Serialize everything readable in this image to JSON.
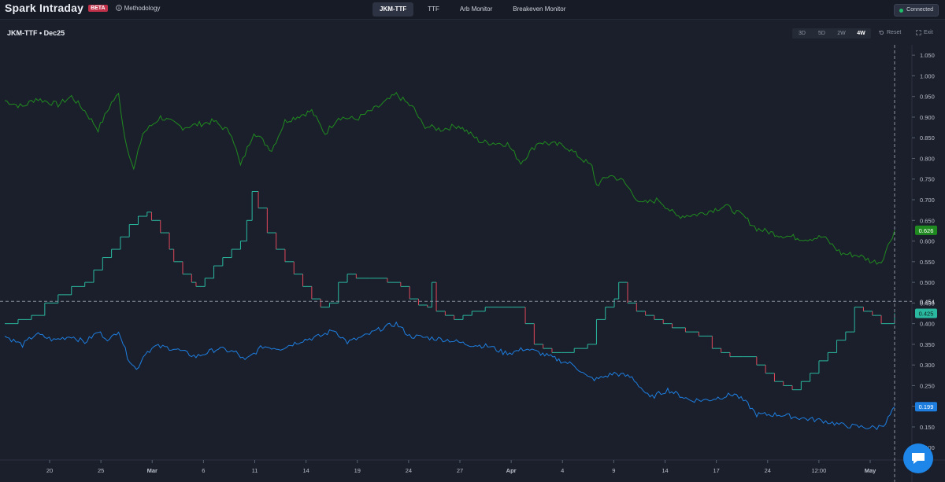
{
  "header": {
    "app_name": "Spark Intraday",
    "badge": "BETA",
    "methodology": "Methodology",
    "tabs": [
      "JKM-TTF",
      "TTF",
      "Arb Monitor",
      "Breakeven Monitor"
    ],
    "active_tab": "JKM-TTF",
    "status": "Connected"
  },
  "toolbar": {
    "title": "JKM-TTF  •  Dec25",
    "ranges": [
      "3D",
      "5D",
      "2W",
      "4W"
    ],
    "active_range": "4W",
    "reset": "Reset",
    "exit": "Exit"
  },
  "colors": {
    "background": "#1b1f2b",
    "green_series": "#1f8a1f",
    "blue_series": "#1d7ee0",
    "step_up": "#2ab8a0",
    "step_down": "#e0485a",
    "connected": "#1fbf6a"
  },
  "chart_data": {
    "type": "line",
    "x_ticks": [
      "20",
      "25",
      "Mar",
      "6",
      "11",
      "14",
      "19",
      "24",
      "27",
      "Apr",
      "4",
      "9",
      "14",
      "17",
      "24",
      "12:00",
      "May"
    ],
    "y_ticks": [
      "1.050",
      "1.000",
      "0.950",
      "0.900",
      "0.850",
      "0.800",
      "0.750",
      "0.700",
      "0.650",
      "0.600",
      "0.550",
      "0.500",
      "0.450",
      "0.400",
      "0.350",
      "0.300",
      "0.250",
      "0.200",
      "0.150",
      "0.100"
    ],
    "ylim": [
      0.07,
      1.075
    ],
    "crosshair_value": "0.454",
    "series": [
      {
        "key": "green",
        "last_label": "0.626",
        "points": [
          [
            0,
            0.94
          ],
          [
            0.02,
            0.925
          ],
          [
            0.035,
            0.945
          ],
          [
            0.06,
            0.93
          ],
          [
            0.075,
            0.95
          ],
          [
            0.09,
            0.915
          ],
          [
            0.105,
            0.87
          ],
          [
            0.12,
            0.935
          ],
          [
            0.128,
            0.955
          ],
          [
            0.135,
            0.85
          ],
          [
            0.145,
            0.772
          ],
          [
            0.155,
            0.86
          ],
          [
            0.175,
            0.9
          ],
          [
            0.2,
            0.875
          ],
          [
            0.235,
            0.89
          ],
          [
            0.255,
            0.86
          ],
          [
            0.265,
            0.782
          ],
          [
            0.28,
            0.865
          ],
          [
            0.3,
            0.82
          ],
          [
            0.315,
            0.89
          ],
          [
            0.345,
            0.915
          ],
          [
            0.36,
            0.86
          ],
          [
            0.375,
            0.9
          ],
          [
            0.395,
            0.895
          ],
          [
            0.42,
            0.925
          ],
          [
            0.44,
            0.955
          ],
          [
            0.46,
            0.92
          ],
          [
            0.47,
            0.88
          ],
          [
            0.49,
            0.87
          ],
          [
            0.51,
            0.88
          ],
          [
            0.535,
            0.84
          ],
          [
            0.565,
            0.835
          ],
          [
            0.58,
            0.79
          ],
          [
            0.6,
            0.84
          ],
          [
            0.63,
            0.83
          ],
          [
            0.66,
            0.78
          ],
          [
            0.665,
            0.735
          ],
          [
            0.68,
            0.76
          ],
          [
            0.695,
            0.745
          ],
          [
            0.715,
            0.69
          ],
          [
            0.735,
            0.7
          ],
          [
            0.755,
            0.66
          ],
          [
            0.78,
            0.665
          ],
          [
            0.81,
            0.685
          ],
          [
            0.83,
            0.66
          ],
          [
            0.845,
            0.63
          ],
          [
            0.87,
            0.615
          ],
          [
            0.9,
            0.605
          ],
          [
            0.92,
            0.61
          ],
          [
            0.94,
            0.57
          ],
          [
            0.96,
            0.565
          ],
          [
            0.975,
            0.55
          ],
          [
            0.985,
            0.55
          ],
          [
            1,
            0.626
          ]
        ]
      },
      {
        "key": "blue",
        "last_label": "0.199",
        "points": [
          [
            0,
            0.37
          ],
          [
            0.02,
            0.348
          ],
          [
            0.035,
            0.375
          ],
          [
            0.055,
            0.36
          ],
          [
            0.075,
            0.37
          ],
          [
            0.09,
            0.355
          ],
          [
            0.105,
            0.38
          ],
          [
            0.118,
            0.36
          ],
          [
            0.128,
            0.385
          ],
          [
            0.138,
            0.32
          ],
          [
            0.148,
            0.288
          ],
          [
            0.158,
            0.33
          ],
          [
            0.17,
            0.345
          ],
          [
            0.19,
            0.34
          ],
          [
            0.215,
            0.32
          ],
          [
            0.24,
            0.34
          ],
          [
            0.26,
            0.33
          ],
          [
            0.27,
            0.31
          ],
          [
            0.29,
            0.345
          ],
          [
            0.31,
            0.34
          ],
          [
            0.335,
            0.36
          ],
          [
            0.355,
            0.37
          ],
          [
            0.37,
            0.385
          ],
          [
            0.385,
            0.355
          ],
          [
            0.405,
            0.37
          ],
          [
            0.425,
            0.39
          ],
          [
            0.44,
            0.4
          ],
          [
            0.455,
            0.37
          ],
          [
            0.48,
            0.365
          ],
          [
            0.5,
            0.36
          ],
          [
            0.52,
            0.35
          ],
          [
            0.545,
            0.345
          ],
          [
            0.56,
            0.33
          ],
          [
            0.57,
            0.33
          ],
          [
            0.585,
            0.34
          ],
          [
            0.6,
            0.33
          ],
          [
            0.625,
            0.31
          ],
          [
            0.64,
            0.3
          ],
          [
            0.655,
            0.27
          ],
          [
            0.665,
            0.265
          ],
          [
            0.685,
            0.28
          ],
          [
            0.705,
            0.27
          ],
          [
            0.725,
            0.22
          ],
          [
            0.745,
            0.24
          ],
          [
            0.77,
            0.215
          ],
          [
            0.79,
            0.215
          ],
          [
            0.82,
            0.23
          ],
          [
            0.835,
            0.205
          ],
          [
            0.845,
            0.18
          ],
          [
            0.87,
            0.18
          ],
          [
            0.9,
            0.17
          ],
          [
            0.92,
            0.165
          ],
          [
            0.94,
            0.155
          ],
          [
            0.96,
            0.15
          ],
          [
            0.98,
            0.148
          ],
          [
            0.99,
            0.16
          ],
          [
            1,
            0.199
          ]
        ]
      },
      {
        "key": "step",
        "last_label": "0.425",
        "points": [
          [
            0,
            0.4
          ],
          [
            0.015,
            0.41
          ],
          [
            0.03,
            0.42
          ],
          [
            0.045,
            0.45
          ],
          [
            0.06,
            0.47
          ],
          [
            0.075,
            0.49
          ],
          [
            0.09,
            0.5
          ],
          [
            0.1,
            0.53
          ],
          [
            0.11,
            0.56
          ],
          [
            0.12,
            0.58
          ],
          [
            0.13,
            0.61
          ],
          [
            0.14,
            0.64
          ],
          [
            0.15,
            0.66
          ],
          [
            0.16,
            0.67
          ],
          [
            0.165,
            0.65
          ],
          [
            0.175,
            0.62
          ],
          [
            0.185,
            0.58
          ],
          [
            0.19,
            0.55
          ],
          [
            0.2,
            0.52
          ],
          [
            0.21,
            0.5
          ],
          [
            0.215,
            0.49
          ],
          [
            0.225,
            0.51
          ],
          [
            0.235,
            0.54
          ],
          [
            0.245,
            0.56
          ],
          [
            0.255,
            0.58
          ],
          [
            0.265,
            0.6
          ],
          [
            0.272,
            0.65
          ],
          [
            0.278,
            0.72
          ],
          [
            0.285,
            0.68
          ],
          [
            0.295,
            0.62
          ],
          [
            0.305,
            0.58
          ],
          [
            0.315,
            0.55
          ],
          [
            0.325,
            0.52
          ],
          [
            0.335,
            0.49
          ],
          [
            0.345,
            0.46
          ],
          [
            0.355,
            0.44
          ],
          [
            0.365,
            0.45
          ],
          [
            0.375,
            0.5
          ],
          [
            0.385,
            0.52
          ],
          [
            0.395,
            0.51
          ],
          [
            0.41,
            0.51
          ],
          [
            0.43,
            0.5
          ],
          [
            0.445,
            0.49
          ],
          [
            0.455,
            0.46
          ],
          [
            0.465,
            0.445
          ],
          [
            0.475,
            0.44
          ],
          [
            0.48,
            0.5
          ],
          [
            0.485,
            0.43
          ],
          [
            0.495,
            0.42
          ],
          [
            0.505,
            0.41
          ],
          [
            0.515,
            0.42
          ],
          [
            0.525,
            0.43
          ],
          [
            0.54,
            0.44
          ],
          [
            0.555,
            0.44
          ],
          [
            0.57,
            0.44
          ],
          [
            0.585,
            0.4
          ],
          [
            0.595,
            0.35
          ],
          [
            0.605,
            0.34
          ],
          [
            0.615,
            0.33
          ],
          [
            0.625,
            0.33
          ],
          [
            0.64,
            0.34
          ],
          [
            0.655,
            0.35
          ],
          [
            0.665,
            0.41
          ],
          [
            0.675,
            0.44
          ],
          [
            0.685,
            0.46
          ],
          [
            0.69,
            0.5
          ],
          [
            0.7,
            0.45
          ],
          [
            0.71,
            0.43
          ],
          [
            0.72,
            0.42
          ],
          [
            0.73,
            0.41
          ],
          [
            0.74,
            0.4
          ],
          [
            0.75,
            0.39
          ],
          [
            0.765,
            0.38
          ],
          [
            0.78,
            0.37
          ],
          [
            0.795,
            0.34
          ],
          [
            0.805,
            0.33
          ],
          [
            0.815,
            0.32
          ],
          [
            0.83,
            0.32
          ],
          [
            0.845,
            0.3
          ],
          [
            0.855,
            0.28
          ],
          [
            0.865,
            0.26
          ],
          [
            0.875,
            0.25
          ],
          [
            0.885,
            0.24
          ],
          [
            0.895,
            0.26
          ],
          [
            0.905,
            0.28
          ],
          [
            0.915,
            0.31
          ],
          [
            0.925,
            0.33
          ],
          [
            0.935,
            0.36
          ],
          [
            0.945,
            0.38
          ],
          [
            0.955,
            0.44
          ],
          [
            0.965,
            0.43
          ],
          [
            0.975,
            0.42
          ],
          [
            0.985,
            0.4
          ],
          [
            1,
            0.425
          ]
        ]
      }
    ]
  }
}
